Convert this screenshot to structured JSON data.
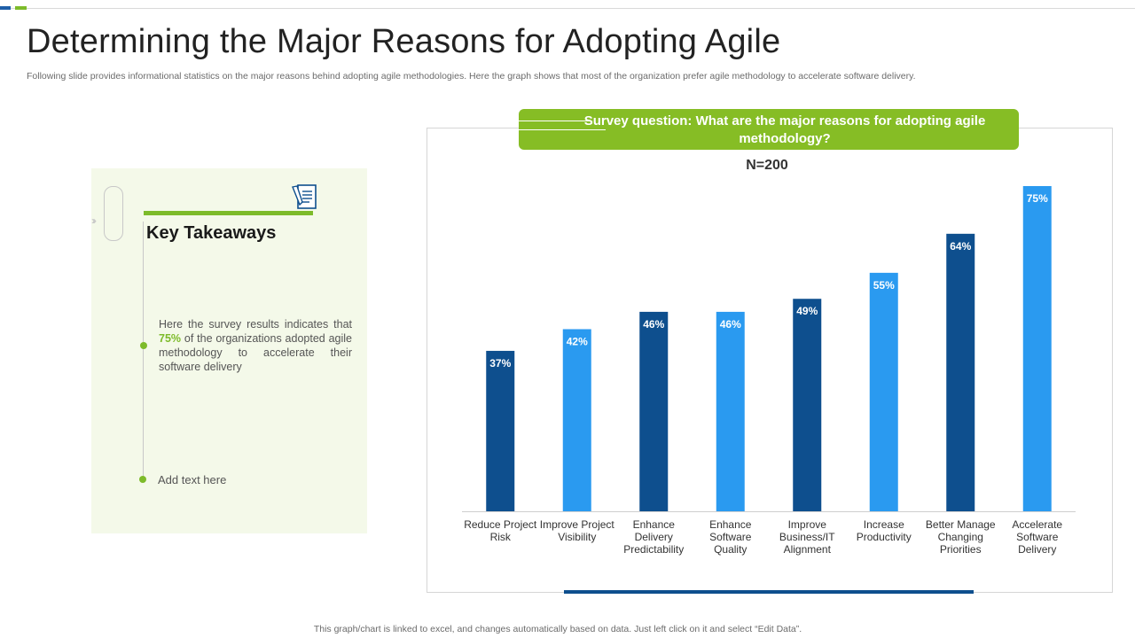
{
  "header": {
    "title": "Determining the Major Reasons for Adopting Agile",
    "subtitle": "Following slide provides informational statistics on the major reasons behind adopting agile methodologies. Here the graph shows that most of the organization prefer agile methodology to accelerate software delivery."
  },
  "takeaways": {
    "heading": "Key Takeaways",
    "point1_before": "Here the survey results indicates that ",
    "point1_highlight": "75%",
    "point1_after": " of the organizations adopted agile methodology to accelerate their software delivery",
    "point2": "Add text here",
    "icon": "document-pen-icon"
  },
  "chart_banner": {
    "question": "Survey question: What are the major reasons for adopting agile methodology?",
    "n": "N=200"
  },
  "footer": {
    "note": "This graph/chart is linked to excel, and changes automatically based on data. Just left click on it and select “Edit Data”."
  },
  "colors": {
    "dark_bar": "#0e4f8e",
    "light_bar": "#2a9af0",
    "accent_green": "#86bd25"
  },
  "chart_data": {
    "type": "bar",
    "categories": [
      [
        "Reduce Project",
        "Risk"
      ],
      [
        "Improve Project",
        "Visibility"
      ],
      [
        "Enhance",
        "Delivery",
        "Predictability"
      ],
      [
        "Enhance",
        "Software",
        "Quality"
      ],
      [
        "Improve",
        "Business/IT",
        "Alignment"
      ],
      [
        "Increase",
        "Productivity"
      ],
      [
        "Better Manage",
        "Changing",
        "Priorities"
      ],
      [
        "Accelerate",
        "Software",
        "Delivery"
      ]
    ],
    "values": [
      37,
      42,
      46,
      46,
      49,
      55,
      64,
      75
    ],
    "data_labels": [
      "37%",
      "42%",
      "46%",
      "46%",
      "49%",
      "55%",
      "64%",
      "75%"
    ],
    "bar_colors": [
      "dark",
      "light",
      "dark",
      "light",
      "dark",
      "light",
      "dark",
      "light"
    ],
    "ylim": [
      0,
      75
    ],
    "grid": false,
    "legend": "none",
    "title": "",
    "xlabel": "",
    "ylabel": ""
  }
}
